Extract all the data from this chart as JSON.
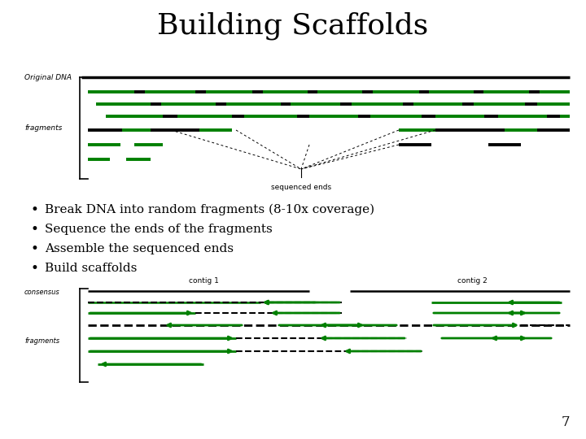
{
  "title": "Building Scaffolds",
  "title_fontsize": 26,
  "title_font": "serif",
  "background_color": "#ffffff",
  "bullet_points": [
    "Break DNA into random fragments (8-10x coverage)",
    "Sequence the ends of the fragments",
    "Assemble the sequenced ends",
    "Build scaffolds"
  ],
  "bullet_fontsize": 11,
  "page_number": "7",
  "green": "#008000",
  "black": "#000000",
  "top_diagram": {
    "original_dna_label": "Original DNA",
    "fragments_label": "fragments",
    "sequenced_ends_label": "sequenced ends"
  },
  "bottom_diagram": {
    "contig1_label": "contig 1",
    "contig2_label": "contig 2",
    "consensus_label": "consensus",
    "fragments_label": "fragments"
  }
}
